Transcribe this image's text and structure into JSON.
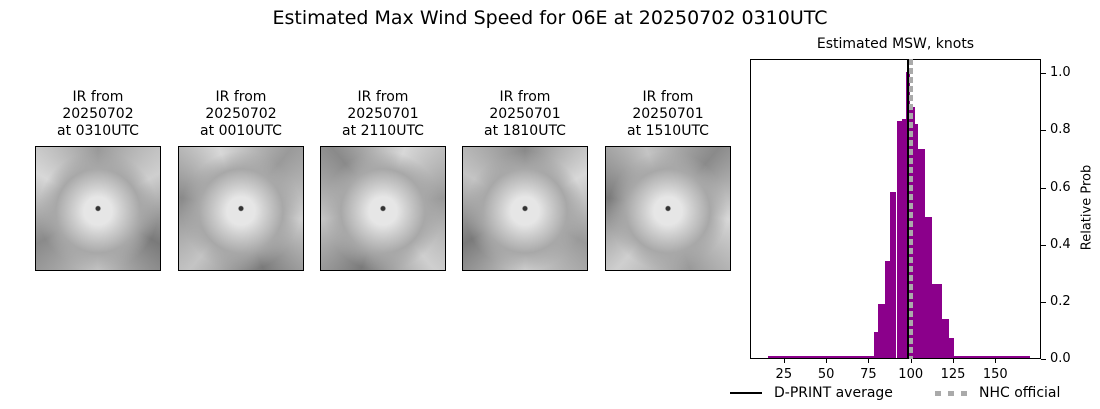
{
  "title": "Estimated Max Wind Speed for 06E at 20250702 0310UTC",
  "ir_panels": [
    {
      "line1": "IR from",
      "line2": "20250702",
      "line3": "at 0310UTC"
    },
    {
      "line1": "IR from",
      "line2": "20250702",
      "line3": "at 0010UTC"
    },
    {
      "line1": "IR from",
      "line2": "20250701",
      "line3": "at 2110UTC"
    },
    {
      "line1": "IR from",
      "line2": "20250701",
      "line3": "at 1810UTC"
    },
    {
      "line1": "IR from",
      "line2": "20250701",
      "line3": "at 1510UTC"
    }
  ],
  "chart_data": {
    "type": "bar",
    "title": "Estimated MSW, knots",
    "xlabel": "",
    "ylabel": "Relative Prob",
    "xlim": [
      5,
      177
    ],
    "ylim": [
      0,
      1.05
    ],
    "xticks": [
      25,
      50,
      75,
      100,
      125,
      150
    ],
    "yticks": [
      "0.0",
      "0.2",
      "0.4",
      "0.6",
      "0.8",
      "1.0"
    ],
    "yaxis_side": "right",
    "bar_color": "#8b008b",
    "bins": [
      {
        "x0": 15,
        "x1": 77.5,
        "value": 0.005
      },
      {
        "x0": 77.5,
        "x1": 80,
        "value": 0.09
      },
      {
        "x0": 80,
        "x1": 84,
        "value": 0.19
      },
      {
        "x0": 84,
        "x1": 87,
        "value": 0.34
      },
      {
        "x0": 87,
        "x1": 91,
        "value": 0.58
      },
      {
        "x0": 91,
        "x1": 94,
        "value": 0.83
      },
      {
        "x0": 94,
        "x1": 96.5,
        "value": 0.835
      },
      {
        "x0": 96.5,
        "x1": 99,
        "value": 1.0
      },
      {
        "x0": 99,
        "x1": 102,
        "value": 0.88
      },
      {
        "x0": 102,
        "x1": 104,
        "value": 0.82
      },
      {
        "x0": 104,
        "x1": 108,
        "value": 0.73
      },
      {
        "x0": 108,
        "x1": 112,
        "value": 0.495
      },
      {
        "x0": 112,
        "x1": 118,
        "value": 0.26
      },
      {
        "x0": 118,
        "x1": 122,
        "value": 0.135
      },
      {
        "x0": 122,
        "x1": 125,
        "value": 0.07
      },
      {
        "x0": 125,
        "x1": 170,
        "value": 0.005
      }
    ],
    "lines": [
      {
        "name": "D-PRINT average",
        "x": 98.5,
        "style": "solid",
        "color": "#000000"
      },
      {
        "name": "NHC official",
        "x": 100,
        "style": "dotted",
        "color": "#aaaaaa"
      }
    ],
    "legend": [
      "D-PRINT average",
      "NHC official"
    ],
    "legend_position": "bottom"
  }
}
